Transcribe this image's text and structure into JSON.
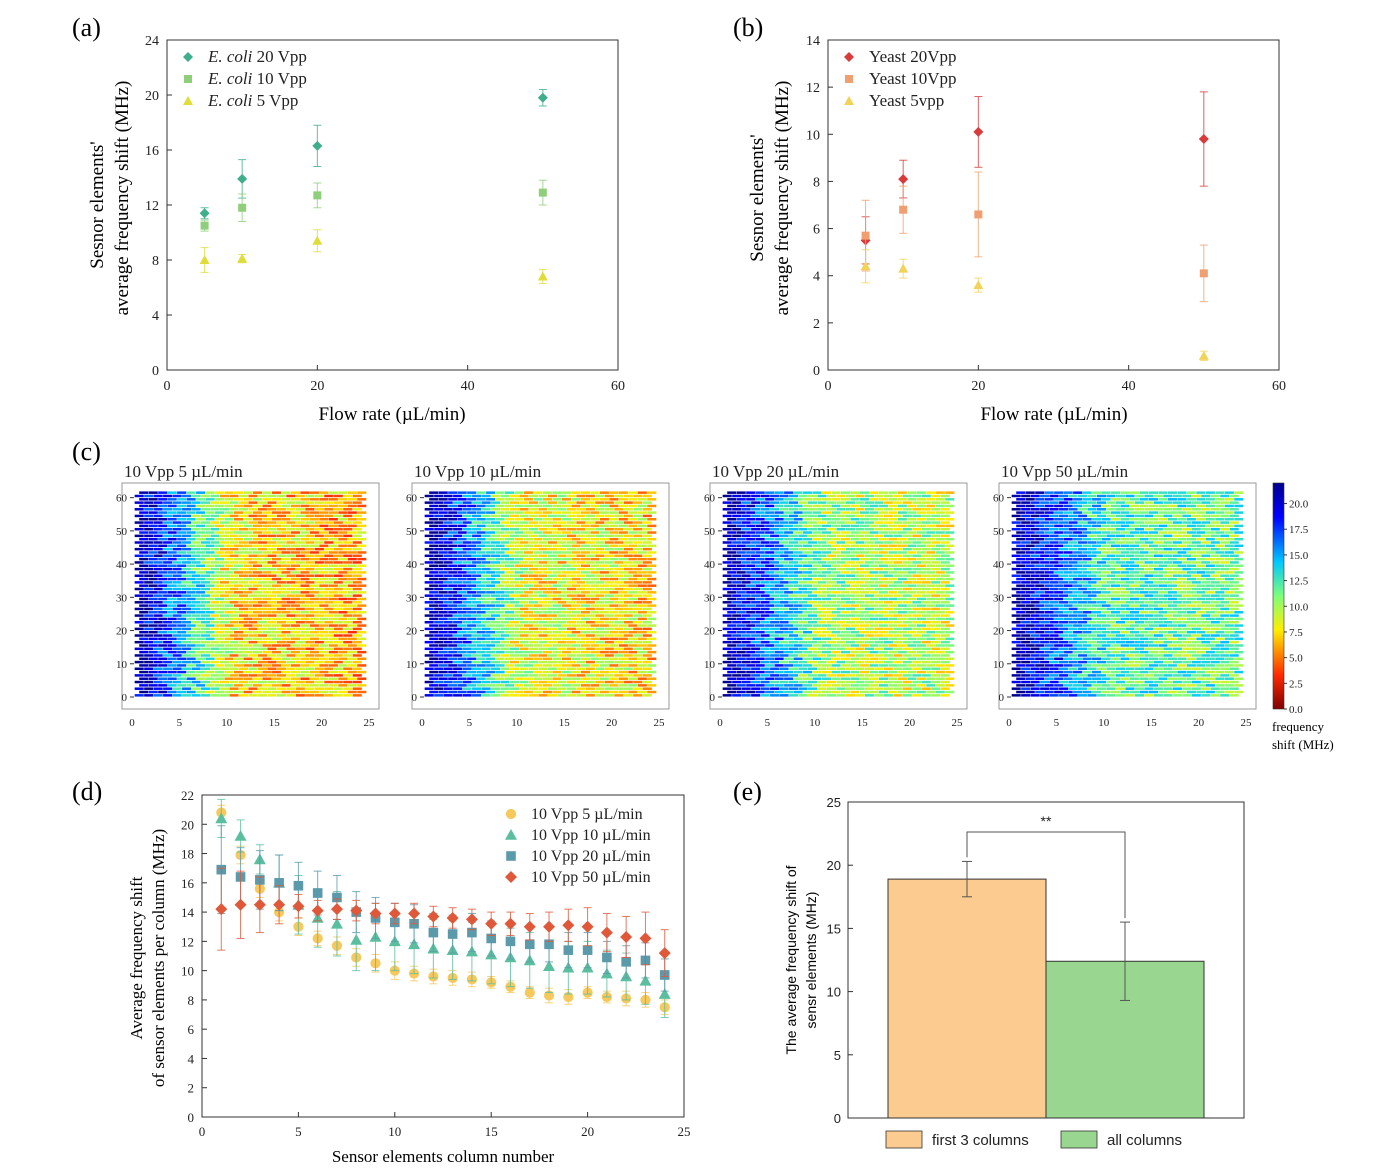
{
  "panel_labels": [
    "(a)",
    "(b)",
    "(c)",
    "(d)",
    "(e)"
  ],
  "chart_data": [
    {
      "id": "a",
      "type": "scatter",
      "xlabel": "Flow rate (µL/min)",
      "ylabel_line1": "Sesnor elements'",
      "ylabel_line2": "average frequency shift (MHz)",
      "xlim": [
        0,
        60
      ],
      "ylim": [
        0,
        24
      ],
      "xticks": [
        0,
        20,
        40,
        60
      ],
      "yticks": [
        0,
        4,
        8,
        12,
        16,
        20,
        24
      ],
      "x": [
        5,
        10,
        20,
        50
      ],
      "legend_position": "top-left",
      "series": [
        {
          "name_italic": "E. coli",
          "name_rest": " 20 Vpp",
          "marker": "diamond",
          "color": "#3fae8c",
          "values": [
            11.4,
            13.9,
            16.3,
            19.8
          ],
          "errors": [
            0.4,
            1.4,
            1.5,
            0.6
          ]
        },
        {
          "name_italic": "E. coli",
          "name_rest": " 10 Vpp",
          "marker": "square",
          "color": "#8fcf7c",
          "values": [
            10.5,
            11.8,
            12.7,
            12.9
          ],
          "errors": [
            0.4,
            1.0,
            0.9,
            0.9
          ]
        },
        {
          "name_italic": "E. coli",
          "name_rest": " 5 Vpp",
          "marker": "triangle",
          "color": "#e0dc3a",
          "values": [
            8.0,
            8.1,
            9.4,
            6.8
          ],
          "errors": [
            0.9,
            0.3,
            0.8,
            0.5
          ]
        }
      ]
    },
    {
      "id": "b",
      "type": "scatter",
      "xlabel": "Flow rate (µL/min)",
      "ylabel_line1": "Sesnor elements'",
      "ylabel_line2": "average frequency shift (MHz)",
      "xlim": [
        0,
        60
      ],
      "ylim": [
        0,
        14
      ],
      "xticks": [
        0,
        20,
        40,
        60
      ],
      "yticks": [
        0,
        2,
        4,
        6,
        8,
        10,
        12,
        14
      ],
      "x": [
        5,
        10,
        20,
        50
      ],
      "legend_position": "top-left",
      "series": [
        {
          "name": "Yeast 20Vpp",
          "marker": "diamond",
          "color": "#d93a3a",
          "values": [
            5.5,
            8.1,
            10.1,
            9.8
          ],
          "errors": [
            1.0,
            0.8,
            1.5,
            2.0
          ]
        },
        {
          "name": "Yeast 10Vpp",
          "marker": "square",
          "color": "#f0a070",
          "values": [
            5.7,
            6.8,
            6.6,
            4.1
          ],
          "errors": [
            1.5,
            1.0,
            1.8,
            1.2
          ]
        },
        {
          "name": "Yeast 5vpp",
          "marker": "triangle",
          "color": "#f2d35a",
          "values": [
            4.4,
            4.3,
            3.6,
            0.6
          ],
          "errors": [
            0.7,
            0.4,
            0.3,
            0.2
          ]
        }
      ]
    },
    {
      "id": "c",
      "type": "heatmap",
      "maps": [
        {
          "title": "10 Vpp 5 µL/min",
          "level": 0.0
        },
        {
          "title": "10 Vpp 10 µL/min",
          "level": 0.15
        },
        {
          "title": "10 Vpp 20 µL/min",
          "level": 0.4
        },
        {
          "title": "10 Vpp 50 µL/min",
          "level": 0.65
        }
      ],
      "xlim": [
        0,
        25
      ],
      "ylim": [
        0,
        62
      ],
      "xticks": [
        0,
        5,
        10,
        15,
        20,
        25
      ],
      "yticks": [
        0,
        10,
        20,
        30,
        40,
        50,
        60
      ],
      "grid_columns": 24,
      "grid_rows": 62,
      "colorbar": {
        "range": [
          0,
          22
        ],
        "ticks": [
          "20.0",
          "17.5",
          "15.0",
          "12.5",
          "10.0",
          "7.5",
          "5.0",
          "2.5",
          "0.0"
        ],
        "label_line1": "frequency",
        "label_line2": "shift (MHz)"
      }
    },
    {
      "id": "d",
      "type": "scatter",
      "xlabel": "Sensor elements column number",
      "ylabel_line1": "Average frequency shift",
      "ylabel_line2": "of sensor elements per column (MHz)",
      "xlim": [
        0,
        25
      ],
      "ylim": [
        0,
        22
      ],
      "xticks": [
        0,
        5,
        10,
        15,
        20,
        25
      ],
      "yticks": [
        0,
        2,
        4,
        6,
        8,
        10,
        12,
        14,
        16,
        18,
        20,
        22
      ],
      "x": [
        1,
        2,
        3,
        4,
        5,
        6,
        7,
        8,
        9,
        10,
        11,
        12,
        13,
        14,
        15,
        16,
        17,
        18,
        19,
        20,
        21,
        22,
        23,
        24
      ],
      "legend_position": "top-right",
      "series": [
        {
          "name": "10 Vpp 5 µL/min",
          "marker": "circle",
          "color": "#f7c85c",
          "values": [
            20.8,
            17.9,
            15.6,
            14.0,
            13.0,
            12.2,
            11.7,
            10.9,
            10.5,
            10.0,
            9.8,
            9.6,
            9.5,
            9.4,
            9.2,
            8.9,
            8.5,
            8.3,
            8.2,
            8.5,
            8.2,
            8.1,
            8.0,
            7.5
          ],
          "errors": [
            0.5,
            0.6,
            0.6,
            0.6,
            0.6,
            0.5,
            0.6,
            0.6,
            0.6,
            0.6,
            0.5,
            0.5,
            0.5,
            0.5,
            0.4,
            0.4,
            0.4,
            0.5,
            0.5,
            0.4,
            0.4,
            0.5,
            0.5,
            0.5
          ]
        },
        {
          "name": "10 Vpp 10 µL/min",
          "marker": "triangle",
          "color": "#5bbf9f",
          "values": [
            20.4,
            19.2,
            17.6,
            16.0,
            14.5,
            13.6,
            13.2,
            12.1,
            12.3,
            12.0,
            11.8,
            11.5,
            11.4,
            11.3,
            11.1,
            10.9,
            10.7,
            10.3,
            10.2,
            10.2,
            9.8,
            9.6,
            9.3,
            8.4
          ],
          "errors": [
            1.3,
            1.1,
            1.0,
            1.9,
            2.0,
            2.0,
            2.2,
            2.1,
            2.3,
            2.0,
            2.0,
            2.0,
            2.0,
            2.0,
            2.0,
            2.0,
            1.9,
            1.8,
            1.8,
            1.8,
            1.6,
            1.6,
            1.6,
            1.6
          ]
        },
        {
          "name": "10 Vpp 20 µL/min",
          "marker": "square",
          "color": "#5b9aab",
          "values": [
            16.9,
            16.4,
            16.2,
            16.0,
            15.8,
            15.3,
            15.0,
            14.0,
            13.6,
            13.3,
            13.2,
            12.6,
            12.5,
            12.6,
            12.2,
            12.0,
            11.8,
            11.8,
            11.4,
            11.4,
            10.9,
            10.6,
            10.7,
            9.7
          ],
          "errors": [
            3.0,
            2.0,
            2.0,
            1.9,
            1.6,
            1.5,
            1.5,
            1.4,
            1.4,
            1.3,
            1.3,
            1.3,
            1.3,
            1.3,
            1.2,
            1.2,
            1.2,
            1.2,
            1.2,
            1.2,
            1.1,
            1.1,
            1.2,
            1.1
          ]
        },
        {
          "name": "10 Vpp 50 µL/min",
          "marker": "diamond",
          "color": "#e0583a",
          "values": [
            14.2,
            14.5,
            14.5,
            14.5,
            14.4,
            14.1,
            14.2,
            14.1,
            13.9,
            13.9,
            13.9,
            13.7,
            13.6,
            13.5,
            13.2,
            13.2,
            13.0,
            13.0,
            13.1,
            13.0,
            12.6,
            12.3,
            12.2,
            11.2
          ],
          "errors": [
            2.8,
            2.3,
            1.9,
            1.3,
            0.8,
            0.7,
            0.7,
            0.7,
            0.7,
            0.7,
            0.7,
            0.7,
            0.7,
            0.7,
            0.8,
            0.8,
            0.9,
            1.0,
            1.1,
            1.3,
            1.3,
            1.4,
            1.8,
            1.6
          ]
        }
      ]
    },
    {
      "id": "e",
      "type": "bar",
      "ylabel_line1": "The average frequency shift of",
      "ylabel_line2": "sensr elements (MHz)",
      "ylim": [
        0,
        25
      ],
      "yticks": [
        0,
        5,
        10,
        15,
        20,
        25
      ],
      "categories": [
        "first 3 columns",
        "all columns"
      ],
      "values": [
        18.9,
        12.4
      ],
      "errors": [
        1.4,
        3.1
      ],
      "colors": [
        "#fccb90",
        "#99d68f"
      ],
      "significance": "**",
      "legend_position": "bottom"
    }
  ]
}
